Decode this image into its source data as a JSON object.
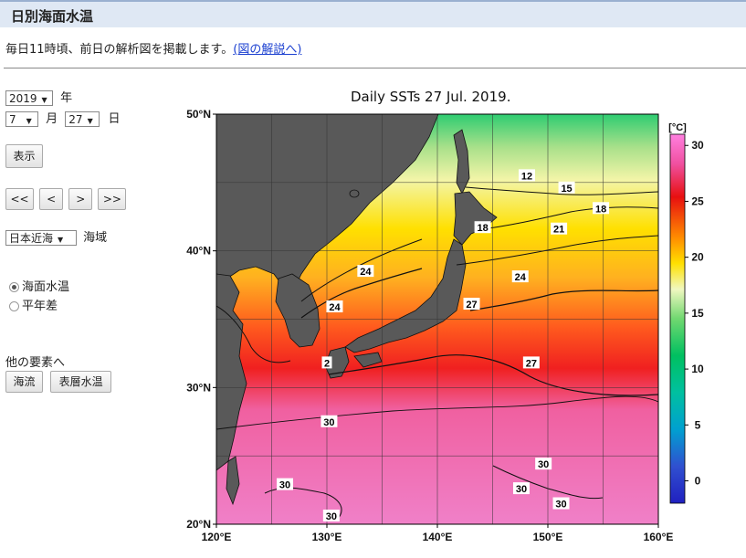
{
  "header": {
    "title": "日別海面水温"
  },
  "intro": {
    "text": "毎日11時頃、前日の解析図を掲載します。",
    "link": "(図の解説へ)"
  },
  "controls": {
    "year": "2019",
    "year_unit": "年",
    "month": "7",
    "month_unit": "月",
    "day": "27",
    "day_unit": "日",
    "show_button": "表示",
    "nav": [
      "<<",
      "<",
      ">",
      ">>"
    ],
    "region": "日本近海",
    "region_unit": "海域",
    "radio_sst": "海面水温",
    "radio_anom": "平年差",
    "other_label": "他の要素へ",
    "current_button": "海流",
    "surface_button": "表層水温"
  },
  "colors": {
    "land": "#595959",
    "header": "#dfe8f4",
    "link": "#1a3fd0"
  },
  "chart_data": {
    "type": "heatmap",
    "title": "Daily SSTs 27 Jul. 2019.",
    "lon_ticks": [
      "120°E",
      "130°E",
      "140°E",
      "150°E",
      "160°E"
    ],
    "lat_ticks": [
      "50°N",
      "40°N",
      "30°N",
      "20°N"
    ],
    "xlim": [
      120,
      160
    ],
    "ylim": [
      20,
      50
    ],
    "colorbar": {
      "unit": "[°C]",
      "ticks": [
        "30",
        "25",
        "20",
        "15",
        "10",
        "5",
        "0"
      ],
      "range": [
        -2,
        31
      ]
    },
    "contour_labels": [
      {
        "text": "12",
        "lon": 148.1,
        "lat": 45.5
      },
      {
        "text": "15",
        "lon": 151.7,
        "lat": 44.6
      },
      {
        "text": "18",
        "lon": 154.8,
        "lat": 43.1
      },
      {
        "text": "18",
        "lon": 144.1,
        "lat": 41.7
      },
      {
        "text": "21",
        "lon": 151.0,
        "lat": 41.6
      },
      {
        "text": "24",
        "lon": 133.5,
        "lat": 38.5
      },
      {
        "text": "24",
        "lon": 147.5,
        "lat": 38.1
      },
      {
        "text": "24",
        "lon": 130.7,
        "lat": 35.9
      },
      {
        "text": "27",
        "lon": 143.1,
        "lat": 36.1
      },
      {
        "text": "27",
        "lon": 148.5,
        "lat": 31.8
      },
      {
        "text": "2",
        "lon": 130.0,
        "lat": 31.8
      },
      {
        "text": "30",
        "lon": 130.2,
        "lat": 27.5
      },
      {
        "text": "30",
        "lon": 126.2,
        "lat": 22.9
      },
      {
        "text": "30",
        "lon": 130.4,
        "lat": 20.6
      },
      {
        "text": "30",
        "lon": 147.6,
        "lat": 22.6
      },
      {
        "text": "30",
        "lon": 149.6,
        "lat": 24.4
      },
      {
        "text": "30",
        "lon": 151.2,
        "lat": 21.5
      }
    ]
  }
}
